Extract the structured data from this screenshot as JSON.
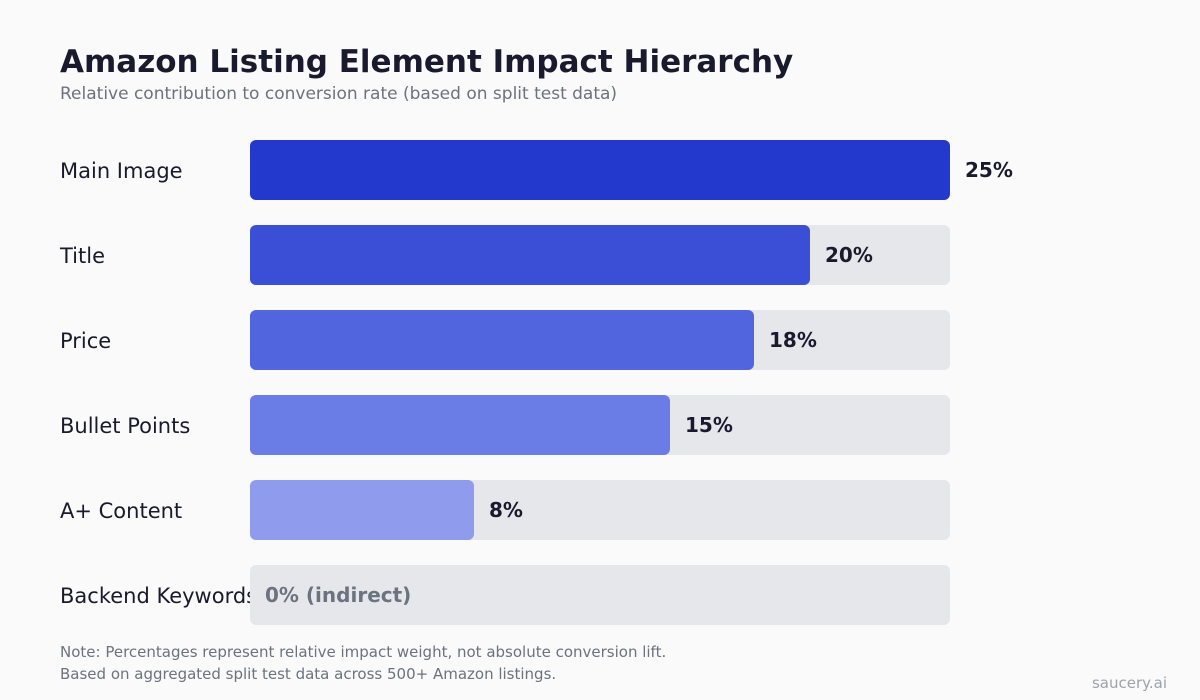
{
  "chart_data": {
    "type": "bar",
    "orientation": "horizontal",
    "title": "Amazon Listing Element Impact Hierarchy",
    "subtitle": "Relative contribution to conversion rate (based on split test data)",
    "categories": [
      "Main Image",
      "Title",
      "Price",
      "Bullet Points",
      "A+ Content",
      "Backend Keywords"
    ],
    "values": [
      25,
      20,
      18,
      15,
      8,
      0
    ],
    "value_labels": [
      "25%",
      "20%",
      "18%",
      "15%",
      "8%",
      "0% (indirect)"
    ],
    "xlim": [
      0,
      25
    ],
    "unit": "%",
    "colors": [
      "#2338cc",
      "#3b4fd6",
      "#5166de",
      "#6a7de6",
      "#8f9cee",
      "#e5e7eb"
    ],
    "track_color": "#e5e7eb",
    "grid": false,
    "legend": "none"
  },
  "footer": {
    "note_line1": "Note: Percentages represent relative impact weight, not absolute conversion lift.",
    "note_line2": "Based on aggregated split test data across 500+ Amazon listings.",
    "brand": "saucery.ai"
  }
}
